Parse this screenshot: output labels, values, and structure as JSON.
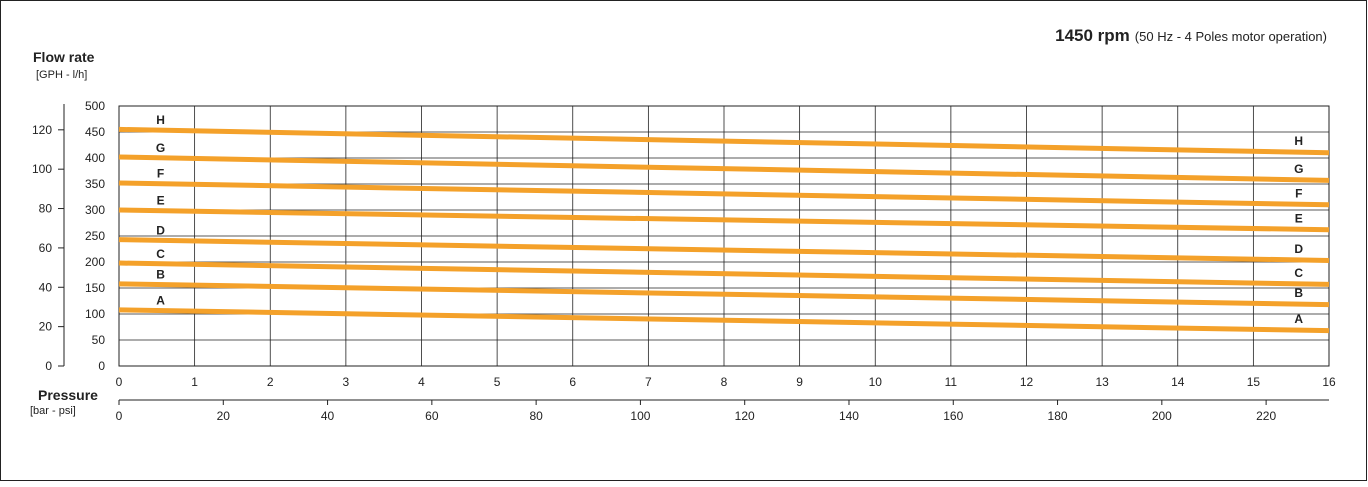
{
  "header": {
    "rpm_bold": "1450 rpm",
    "rpm_detail": "(50 Hz - 4 Poles motor operation)"
  },
  "y_axis": {
    "title": "Flow rate",
    "units": "[GPH - l/h]"
  },
  "x_axis": {
    "title": "Pressure",
    "units": "[bar - psi]"
  },
  "colors": {
    "curve": "#f4a12a",
    "grid": "#222222",
    "frame": "#222222",
    "text": "#222222"
  },
  "chart_data": {
    "type": "line",
    "title": "",
    "xlabel": "Pressure",
    "ylabel": "Flow rate",
    "xlim": [
      0,
      16
    ],
    "ylim": [
      0,
      500
    ],
    "x_ticks_bar": [
      "0",
      "1",
      "2",
      "3",
      "4",
      "5",
      "6",
      "7",
      "8",
      "9",
      "10",
      "11",
      "12",
      "13",
      "14",
      "15",
      "16"
    ],
    "x_ticks_psi": [
      "0",
      "20",
      "40",
      "60",
      "80",
      "100",
      "120",
      "140",
      "160",
      "180",
      "200",
      "220"
    ],
    "y_ticks_lh": [
      "0",
      "50",
      "100",
      "150",
      "200",
      "250",
      "300",
      "350",
      "400",
      "450",
      "500"
    ],
    "y_ticks_gph": [
      "0",
      "20",
      "40",
      "60",
      "80",
      "100",
      "120"
    ],
    "grid": true,
    "series": [
      {
        "name": "A",
        "x": [
          0,
          16
        ],
        "y": [
          108,
          68
        ]
      },
      {
        "name": "B",
        "x": [
          0,
          16
        ],
        "y": [
          158,
          118
        ]
      },
      {
        "name": "C",
        "x": [
          0,
          16
        ],
        "y": [
          198,
          157
        ]
      },
      {
        "name": "D",
        "x": [
          0,
          16
        ],
        "y": [
          243,
          203
        ]
      },
      {
        "name": "E",
        "x": [
          0,
          16
        ],
        "y": [
          300,
          262
        ]
      },
      {
        "name": "F",
        "x": [
          0,
          16
        ],
        "y": [
          352,
          310
        ]
      },
      {
        "name": "G",
        "x": [
          0,
          16
        ],
        "y": [
          402,
          357
        ]
      },
      {
        "name": "H",
        "x": [
          0,
          16
        ],
        "y": [
          455,
          410
        ]
      }
    ]
  }
}
